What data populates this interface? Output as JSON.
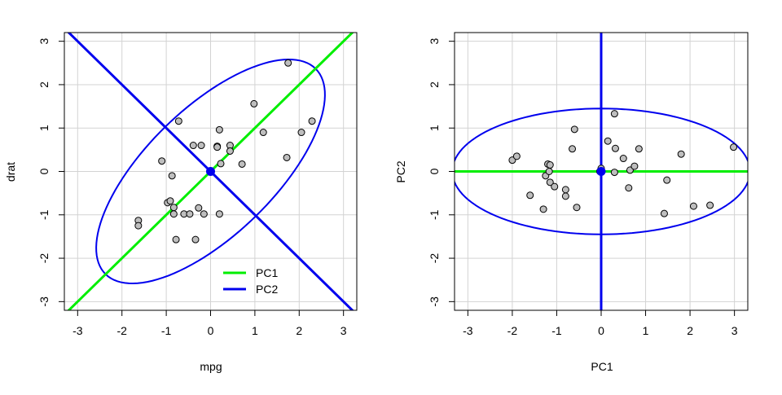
{
  "colors": {
    "pc1": "#00ee00",
    "pc2": "#0000ee",
    "point_fill": "#bebebe",
    "grid": "#d3d3d3",
    "center": "#0000ee"
  },
  "chart_data": [
    {
      "type": "scatter",
      "title": "",
      "xlabel": "mpg",
      "ylabel": "drat",
      "xlim": [
        -3.3,
        3.3
      ],
      "ylim": [
        -3.2,
        3.2
      ],
      "xticks": [
        -3,
        -2,
        -1,
        0,
        1,
        2,
        3
      ],
      "yticks": [
        -3,
        -2,
        -1,
        0,
        1,
        2,
        3
      ],
      "grid": true,
      "points": [
        [
          1.75,
          2.5
        ],
        [
          0.98,
          1.56
        ],
        [
          2.29,
          1.16
        ],
        [
          1.19,
          0.9
        ],
        [
          2.05,
          0.9
        ],
        [
          1.72,
          0.32
        ],
        [
          -0.72,
          1.16
        ],
        [
          0.2,
          0.96
        ],
        [
          0.44,
          0.6
        ],
        [
          0.44,
          0.47
        ],
        [
          0.15,
          0.58
        ],
        [
          0.15,
          0.56
        ],
        [
          -0.39,
          0.6
        ],
        [
          -0.21,
          0.6
        ],
        [
          0.23,
          0.18
        ],
        [
          0.71,
          0.17
        ],
        [
          -1.1,
          0.24
        ],
        [
          -0.87,
          -0.1
        ],
        [
          0.0,
          0.0
        ],
        [
          -0.97,
          -0.72
        ],
        [
          -0.91,
          -0.68
        ],
        [
          -0.83,
          -0.83
        ],
        [
          -0.83,
          -0.98
        ],
        [
          -0.6,
          -0.98
        ],
        [
          -0.47,
          -0.98
        ],
        [
          -0.27,
          -0.84
        ],
        [
          -0.15,
          -0.98
        ],
        [
          0.2,
          -0.98
        ],
        [
          -1.63,
          -1.13
        ],
        [
          -1.63,
          -1.25
        ],
        [
          -0.78,
          -1.57
        ],
        [
          -0.34,
          -1.57
        ]
      ],
      "lines": [
        {
          "name": "PC1",
          "slope": 1
        },
        {
          "name": "PC2",
          "slope": -1
        }
      ],
      "ellipse": {
        "center": [
          0,
          0
        ],
        "a": 3.35,
        "b": 1.45,
        "angle_deg": 45
      },
      "legend": {
        "position": "bottom-right",
        "entries": [
          "PC1",
          "PC2"
        ]
      }
    },
    {
      "type": "scatter",
      "title": "",
      "xlabel": "PC1",
      "ylabel": "PC2",
      "xlim": [
        -3.3,
        3.3
      ],
      "ylim": [
        -3.2,
        3.2
      ],
      "xticks": [
        -3,
        -2,
        -1,
        0,
        1,
        2,
        3
      ],
      "yticks": [
        -3,
        -2,
        -1,
        0,
        1,
        2,
        3
      ],
      "grid": true,
      "points": [
        [
          -2.0,
          0.26
        ],
        [
          -1.9,
          0.35
        ],
        [
          -1.6,
          -0.55
        ],
        [
          -1.3,
          -0.87
        ],
        [
          -1.25,
          -0.1
        ],
        [
          -1.2,
          0.17
        ],
        [
          -1.15,
          0.15
        ],
        [
          -1.17,
          0.0
        ],
        [
          -1.15,
          -0.25
        ],
        [
          -1.05,
          -0.35
        ],
        [
          -0.8,
          -0.57
        ],
        [
          -0.8,
          -0.42
        ],
        [
          -0.65,
          0.52
        ],
        [
          -0.6,
          0.97
        ],
        [
          -0.55,
          -0.83
        ],
        [
          -0.03,
          0.0
        ],
        [
          0.0,
          0.07
        ],
        [
          0.15,
          0.7
        ],
        [
          0.3,
          1.33
        ],
        [
          0.3,
          -0.02
        ],
        [
          0.32,
          0.53
        ],
        [
          0.5,
          0.3
        ],
        [
          0.62,
          -0.38
        ],
        [
          0.65,
          0.03
        ],
        [
          0.75,
          0.12
        ],
        [
          0.85,
          0.52
        ],
        [
          1.42,
          -0.97
        ],
        [
          1.48,
          -0.2
        ],
        [
          1.8,
          0.4
        ],
        [
          2.08,
          -0.8
        ],
        [
          2.45,
          -0.78
        ],
        [
          2.98,
          0.56
        ]
      ],
      "lines": [
        {
          "name": "PC1",
          "orientation": "horizontal",
          "at": 0
        },
        {
          "name": "PC2",
          "orientation": "vertical",
          "at": 0
        }
      ],
      "ellipse": {
        "center": [
          0,
          0
        ],
        "a": 3.35,
        "b": 1.45,
        "angle_deg": 0
      }
    }
  ]
}
